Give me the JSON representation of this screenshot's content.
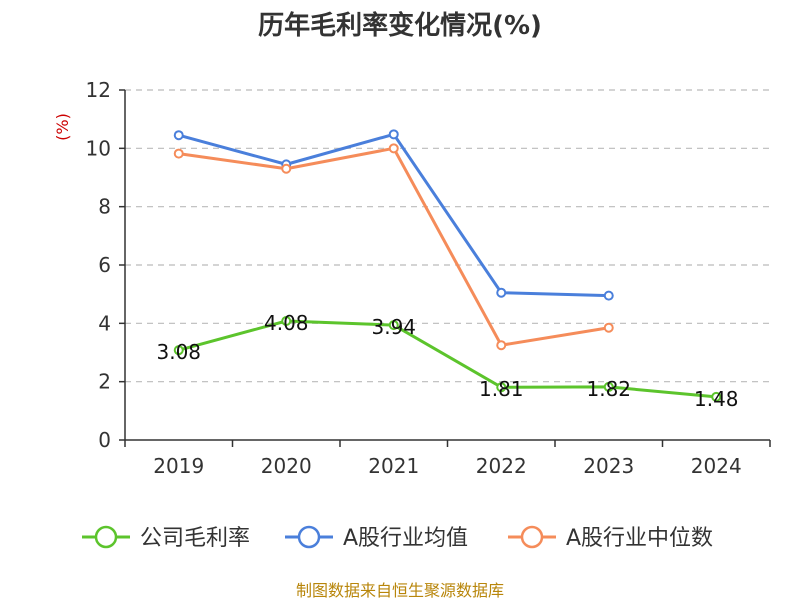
{
  "chart_data": {
    "type": "line",
    "title": "历年毛利率变化情况(%)",
    "ylabel": "(%)",
    "xlabel": "",
    "categories": [
      "2019",
      "2020",
      "2021",
      "2022",
      "2023",
      "2024"
    ],
    "ylim": [
      0,
      12
    ],
    "yticks": [
      0,
      2,
      4,
      6,
      8,
      10,
      12
    ],
    "grid": true,
    "legend_position": "bottom",
    "series": [
      {
        "name": "公司毛利率",
        "color": "#5cc42c",
        "values": [
          3.08,
          4.08,
          3.94,
          1.81,
          1.82,
          1.48
        ],
        "labels": [
          "3.08",
          "4.08",
          "3.94",
          "1.81",
          "1.82",
          "1.48"
        ]
      },
      {
        "name": "A股行业均值",
        "color": "#4a7fdb",
        "values": [
          10.45,
          9.45,
          10.48,
          5.05,
          4.95,
          null
        ]
      },
      {
        "name": "A股行业中位数",
        "color": "#f58c5a",
        "values": [
          9.82,
          9.3,
          10.0,
          3.25,
          3.85,
          null
        ]
      }
    ],
    "source": "制图数据来自恒生聚源数据库"
  }
}
